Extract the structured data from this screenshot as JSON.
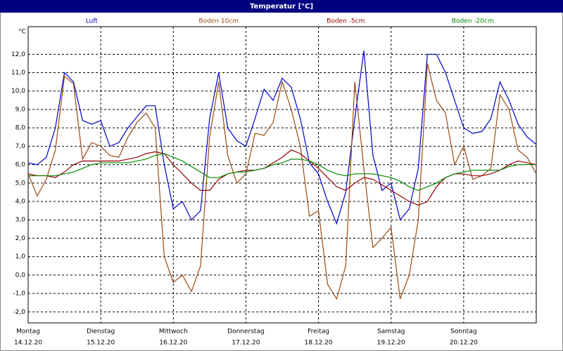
{
  "chart_data": {
    "type": "line",
    "title": "Temperatur [°C]",
    "y_unit": "°C",
    "x": [
      0,
      0.125,
      0.25,
      0.375,
      0.5,
      0.625,
      0.75,
      0.875,
      1,
      1.125,
      1.25,
      1.375,
      1.5,
      1.625,
      1.75,
      1.875,
      2,
      2.125,
      2.25,
      2.375,
      2.5,
      2.625,
      2.75,
      2.875,
      3,
      3.125,
      3.25,
      3.375,
      3.5,
      3.625,
      3.75,
      3.875,
      4,
      4.125,
      4.25,
      4.375,
      4.5,
      4.625,
      4.75,
      4.875,
      5,
      5.125,
      5.25,
      5.375,
      5.5,
      5.625,
      5.75,
      5.875,
      6,
      6.125,
      6.25,
      6.375,
      6.5,
      6.625,
      6.75,
      6.875,
      7
    ],
    "xlim": [
      0,
      7
    ],
    "xticks": [
      {
        "value": 0,
        "label": "Montag",
        "date": "14.12.20"
      },
      {
        "value": 1,
        "label": "Dienstag",
        "date": "15.12.20"
      },
      {
        "value": 2,
        "label": "Mittwoch",
        "date": "16.12.20"
      },
      {
        "value": 3,
        "label": "Donnerstag",
        "date": "17.12.20"
      },
      {
        "value": 4,
        "label": "Freitag",
        "date": "18.12.20"
      },
      {
        "value": 5,
        "label": "Samstag",
        "date": "19.12.20"
      },
      {
        "value": 6,
        "label": "Sonntag",
        "date": "20.12.20"
      }
    ],
    "ylim": [
      -2.6,
      13.5
    ],
    "yticks": [
      {
        "value": -2,
        "label": "-2,0"
      },
      {
        "value": -1,
        "label": "-1,0"
      },
      {
        "value": 0,
        "label": "0,0"
      },
      {
        "value": 1,
        "label": "1,0"
      },
      {
        "value": 2,
        "label": "2,0"
      },
      {
        "value": 3,
        "label": "3,0"
      },
      {
        "value": 4,
        "label": "4,0"
      },
      {
        "value": 5,
        "label": "5,0"
      },
      {
        "value": 6,
        "label": "6,0"
      },
      {
        "value": 7,
        "label": "7,0"
      },
      {
        "value": 8,
        "label": "8,0"
      },
      {
        "value": 9,
        "label": "9,0"
      },
      {
        "value": 10,
        "label": "10,0"
      },
      {
        "value": 11,
        "label": "11,0"
      },
      {
        "value": 12,
        "label": "12,0"
      }
    ],
    "grid": true,
    "series": [
      {
        "name": "Luft",
        "color": "#0000c8",
        "values": [
          6.1,
          6.0,
          6.4,
          8.0,
          11.0,
          10.5,
          8.4,
          8.2,
          8.4,
          7.0,
          7.2,
          8.0,
          8.6,
          9.2,
          9.2,
          6.0,
          3.6,
          4.0,
          3.0,
          3.5,
          8.5,
          11.0,
          8.0,
          7.3,
          7.0,
          8.5,
          10.1,
          9.5,
          10.7,
          10.2,
          8.5,
          6.1,
          5.5,
          4.0,
          2.8,
          4.5,
          8.5,
          12.2,
          6.5,
          4.6,
          5.0,
          3.0,
          3.6,
          5.8,
          12.0,
          12.0,
          11.0,
          9.5,
          8.0,
          7.7,
          7.8,
          8.5,
          10.5,
          9.5,
          8.2,
          7.5,
          7.1
        ]
      },
      {
        "name": "Boden 10cm",
        "color": "#9a4a14",
        "values": [
          5.5,
          4.3,
          5.2,
          6.8,
          10.8,
          10.4,
          6.3,
          7.2,
          7.0,
          6.5,
          6.4,
          7.5,
          8.3,
          8.8,
          8.0,
          1.0,
          -0.4,
          0.0,
          -0.9,
          0.5,
          7.5,
          10.5,
          6.5,
          5.0,
          5.5,
          7.7,
          7.6,
          8.3,
          10.5,
          9.0,
          7.0,
          3.2,
          3.5,
          -0.5,
          -1.3,
          0.5,
          10.5,
          5.8,
          1.5,
          2.0,
          2.6,
          -1.3,
          0.0,
          3.0,
          11.5,
          9.5,
          8.8,
          6.0,
          7.0,
          5.2,
          5.4,
          5.8,
          9.8,
          9.0,
          6.8,
          6.4,
          5.5
        ]
      },
      {
        "name": "Boden -5cm",
        "color": "#900000",
        "values": [
          5.5,
          5.4,
          5.4,
          5.3,
          5.6,
          6.0,
          6.2,
          6.2,
          6.2,
          6.2,
          6.2,
          6.3,
          6.4,
          6.6,
          6.7,
          6.6,
          6.0,
          5.5,
          5.0,
          4.6,
          4.6,
          5.2,
          5.5,
          5.6,
          5.7,
          5.7,
          5.8,
          6.1,
          6.4,
          6.8,
          6.6,
          6.2,
          5.8,
          5.3,
          4.8,
          4.6,
          5.0,
          5.3,
          5.2,
          4.9,
          4.6,
          4.3,
          4.0,
          3.8,
          4.0,
          4.8,
          5.3,
          5.5,
          5.5,
          5.4,
          5.4,
          5.5,
          5.7,
          6.0,
          6.2,
          6.1,
          6.0
        ]
      },
      {
        "name": "Boden -20cm",
        "color": "#008a00",
        "values": [
          5.4,
          5.4,
          5.4,
          5.4,
          5.5,
          5.6,
          5.8,
          6.0,
          6.1,
          6.1,
          6.1,
          6.1,
          6.2,
          6.3,
          6.5,
          6.6,
          6.4,
          6.2,
          5.9,
          5.6,
          5.3,
          5.3,
          5.5,
          5.6,
          5.6,
          5.7,
          5.8,
          6.0,
          6.1,
          6.3,
          6.3,
          6.2,
          6.0,
          5.7,
          5.5,
          5.4,
          5.5,
          5.5,
          5.5,
          5.4,
          5.3,
          5.1,
          4.8,
          4.6,
          4.8,
          5.0,
          5.3,
          5.5,
          5.6,
          5.7,
          5.7,
          5.7,
          5.7,
          5.9,
          6.0,
          6.0,
          6.0
        ]
      }
    ]
  }
}
